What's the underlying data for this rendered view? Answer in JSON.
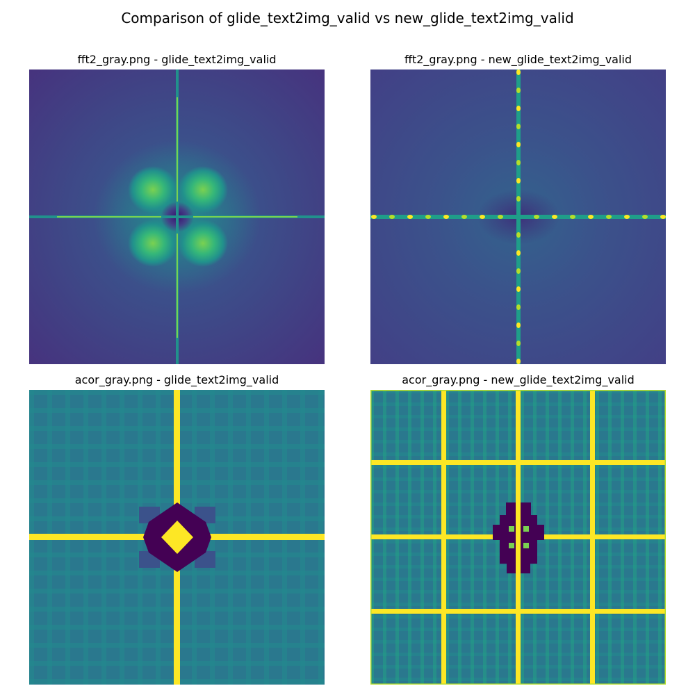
{
  "figure": {
    "title": "Comparison of glide_text2img_valid vs new_glide_text2img_valid"
  },
  "colors": {
    "deep": "#440154",
    "base": "#46337e",
    "mid": "#2a788e",
    "teal": "#21918c",
    "green": "#35b779",
    "yellowgreen": "#b5de2b",
    "yellow": "#fde725"
  },
  "chart_data": [
    {
      "type": "heatmap",
      "title": "fft2_gray.png - glide_text2img_valid",
      "colormap": "viridis",
      "axes": "off",
      "features": [
        "vertical-spectral-line",
        "horizontal-spectral-line",
        "four-lobe-center-blob",
        "dark-center-hole"
      ]
    },
    {
      "type": "heatmap",
      "title": "fft2_gray.png - new_glide_text2img_valid",
      "colormap": "viridis",
      "axes": "off",
      "features": [
        "vertical-spectral-line",
        "horizontal-spectral-line",
        "periodic-peaks-along-axes",
        "dark-center"
      ]
    },
    {
      "type": "heatmap",
      "title": "acor_gray.png - glide_text2img_valid",
      "colormap": "viridis",
      "axes": "off",
      "features": [
        "center-cross-lines",
        "dark-diamond-center",
        "yellow-center-peak",
        "faint-grid-texture"
      ]
    },
    {
      "type": "heatmap",
      "title": "acor_gray.png - new_glide_text2img_valid",
      "colormap": "viridis",
      "axes": "off",
      "features": [
        "periodic-grid-lines",
        "dark-center-patch",
        "center-cross-lines",
        "checkered-texture"
      ]
    }
  ]
}
